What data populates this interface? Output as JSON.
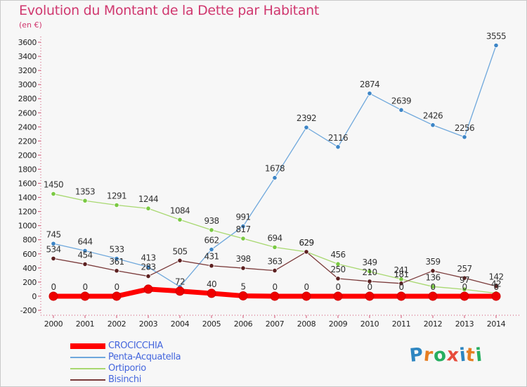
{
  "header": {
    "title": "Evolution du Montant de la Dette par Habitant",
    "subtitle": "(en €)"
  },
  "brand": {
    "logo_letters": [
      "P",
      "r",
      "o",
      "x",
      "i",
      "t",
      "i"
    ],
    "logo_colors": [
      "#2e86c1",
      "#e67e22",
      "#27ae60",
      "#e74c3c",
      "#2e86c1",
      "#e67e22",
      "#27ae60"
    ]
  },
  "chart_data": {
    "type": "line",
    "title": "Evolution du Montant de la Dette par Habitant",
    "subtitle": "(en €)",
    "x": [
      "2000",
      "2001",
      "2002",
      "2003",
      "2004",
      "2005",
      "2006",
      "2007",
      "2008",
      "2009",
      "2010",
      "2011",
      "2012",
      "2013",
      "2014"
    ],
    "ylim": [
      -200,
      3600
    ],
    "yticks": [
      -200,
      0,
      200,
      400,
      600,
      800,
      1000,
      1200,
      1400,
      1600,
      1800,
      2000,
      2200,
      2400,
      2600,
      2800,
      3000,
      3200,
      3400,
      3600
    ],
    "grid": false,
    "legend_position": "bottom-left",
    "series": [
      {
        "name": "CROCICCHIA",
        "color": "#ff0000",
        "marker": "#ee0000",
        "width": 7,
        "values": [
          0,
          0,
          0,
          100,
          72,
          40,
          5,
          0,
          0,
          0,
          0,
          0,
          0,
          0,
          0
        ],
        "labels": [
          "0",
          "0",
          "0",
          "",
          "72",
          "40",
          "5",
          "0",
          "0",
          "0",
          "0",
          "0",
          "0",
          "0",
          "0"
        ]
      },
      {
        "name": "Penta-Acquatella",
        "color": "#6fa8dc",
        "marker": "#3d85c6",
        "width": 1.3,
        "values": [
          745,
          644,
          533,
          413,
          134,
          662,
          991,
          1678,
          2392,
          2116,
          2874,
          2639,
          2426,
          2256,
          3555
        ],
        "labels": [
          "745",
          "644",
          "533",
          "413",
          "",
          "662",
          "991",
          "1678",
          "2392",
          "2116",
          "2874",
          "2639",
          "2426",
          "2256",
          "3555"
        ]
      },
      {
        "name": "Ortiporio",
        "color": "#a8d870",
        "marker": "#7ac943",
        "width": 1.3,
        "values": [
          1450,
          1353,
          1291,
          1244,
          1084,
          938,
          817,
          694,
          629,
          456,
          349,
          241,
          136,
          97,
          42
        ],
        "labels": [
          "1450",
          "1353",
          "1291",
          "1244",
          "1084",
          "938",
          "817",
          "694",
          "629",
          "456",
          "349",
          "241",
          "136",
          "97",
          "42"
        ]
      },
      {
        "name": "Bisinchi",
        "color": "#7a3a3a",
        "marker": "#5c2020",
        "width": 1.3,
        "values": [
          534,
          454,
          361,
          283,
          505,
          431,
          398,
          363,
          629,
          250,
          210,
          181,
          359,
          257,
          142
        ],
        "labels": [
          "534",
          "454",
          "361",
          "283",
          "505",
          "431",
          "398",
          "363",
          "629",
          "250",
          "210",
          "181",
          "359",
          "257",
          "142"
        ]
      }
    ]
  }
}
